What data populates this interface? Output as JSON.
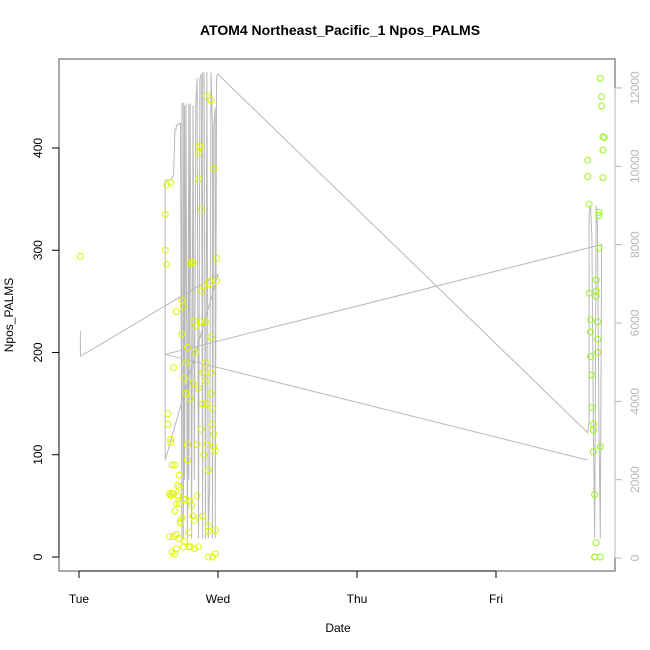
{
  "chart_data": {
    "type": "scatter",
    "title": "ATOM4 Northeast_Pacific_1 Npos_PALMS",
    "xlabel": "Date",
    "ylabel": "Npos_PALMS",
    "xlim_days": [
      0,
      3.72
    ],
    "x_tick_labels": [
      {
        "label": "Tue",
        "day": 0
      },
      {
        "label": "Wed",
        "day": 1
      },
      {
        "label": "Thu",
        "day": 2
      },
      {
        "label": "Fri",
        "day": 3
      }
    ],
    "ylim": [
      0,
      460
    ],
    "y_ticks": [
      0,
      100,
      200,
      300,
      400
    ],
    "y2lim": [
      0,
      12000
    ],
    "y2_ticks": [
      0,
      2000,
      4000,
      6000,
      8000,
      10000,
      12000
    ],
    "grid": false,
    "colors": {
      "early_points": "#ddf700",
      "late_points": "#99f51a",
      "secondary_line": "#b8b8b8",
      "secondary_axis": "#b8b8b8"
    },
    "series": [
      {
        "type": "scatter",
        "axis": "left",
        "x": [
          0.01,
          0.62,
          0.62,
          0.63,
          0.64,
          0.64,
          0.65,
          0.65,
          0.66,
          0.66,
          0.66,
          0.67,
          0.67,
          0.67,
          0.68,
          0.68,
          0.69,
          0.69,
          0.69,
          0.7,
          0.7,
          0.7,
          0.71,
          0.71,
          0.72,
          0.72,
          0.72,
          0.73,
          0.73,
          0.74,
          0.74,
          0.75,
          0.75,
          0.75,
          0.76,
          0.76,
          0.77,
          0.77,
          0.77,
          0.78,
          0.78,
          0.79,
          0.79,
          0.8,
          0.8,
          0.8,
          0.81,
          0.81,
          0.82,
          0.82,
          0.83,
          0.83,
          0.83,
          0.84,
          0.84,
          0.85,
          0.85,
          0.86,
          0.86,
          0.86,
          0.87,
          0.87,
          0.88,
          0.88,
          0.88,
          0.89,
          0.89,
          0.9,
          0.9,
          0.91,
          0.91,
          0.91,
          0.92,
          0.92,
          0.93,
          0.93,
          0.93,
          0.94,
          0.94,
          0.95,
          0.95,
          0.95,
          0.96,
          0.96,
          0.97,
          0.97,
          0.98,
          0.98,
          0.98,
          0.99,
          0.99,
          0.63,
          0.66,
          0.7,
          0.74,
          0.78,
          0.82,
          0.86,
          0.89,
          0.92,
          0.95,
          0.97,
          0.68,
          0.72,
          0.8,
          0.88,
          0.93,
          0.96
        ],
        "y": [
          294,
          335,
          300,
          286,
          140,
          130,
          62,
          20,
          60,
          115,
          112,
          90,
          62,
          5,
          62,
          20,
          90,
          45,
          3,
          8,
          22,
          52,
          60,
          70,
          18,
          52,
          68,
          35,
          33,
          38,
          251,
          245,
          57,
          10,
          15,
          175,
          56,
          190,
          160,
          110,
          95,
          10,
          24,
          55,
          287,
          155,
          50,
          288,
          40,
          288,
          36,
          8,
          231,
          226,
          200,
          110,
          60,
          10,
          395,
          370,
          401,
          402,
          260,
          230,
          125,
          150,
          180,
          100,
          265,
          230,
          190,
          172,
          150,
          110,
          85,
          30,
          25,
          270,
          267,
          215,
          180,
          160,
          145,
          130,
          120,
          108,
          104,
          3,
          26,
          292,
          270,
          364,
          366,
          240,
          218,
          205,
          170,
          165,
          40,
          451,
          447,
          380,
          185,
          80,
          10,
          340,
          0,
          0
        ],
        "color": "#ddf700"
      },
      {
        "type": "scatter",
        "axis": "left",
        "x": [
          3.66,
          3.66,
          3.67,
          3.67,
          3.68,
          3.68,
          3.68,
          3.69,
          3.69,
          3.7,
          3.7,
          3.7,
          3.71,
          3.71,
          3.71,
          3.72,
          3.72,
          3.72,
          3.72,
          3.73,
          3.73,
          3.73,
          3.74,
          3.74,
          3.74,
          3.75,
          3.75,
          3.75,
          3.76,
          3.76,
          3.77,
          3.77,
          3.77,
          3.78
        ],
        "y": [
          388,
          372,
          345,
          258,
          232,
          220,
          196,
          178,
          146,
          130,
          124,
          103,
          61,
          0,
          0,
          14,
          255,
          260,
          271,
          230,
          213,
          200,
          334,
          337,
          302,
          108,
          0,
          468,
          450,
          441,
          411,
          398,
          371,
          410
        ],
        "color": "#99f51a"
      },
      {
        "type": "line",
        "axis": "right",
        "x": [
          0.01,
          0.01,
          1.0,
          0.62,
          0.62,
          0.66,
          0.67,
          0.68,
          0.69,
          0.69,
          0.7,
          0.7,
          0.71,
          0.72,
          0.73,
          0.74,
          0.74,
          0.75,
          0.75,
          0.76,
          0.76,
          0.77,
          0.78,
          0.79,
          0.79,
          0.8,
          0.81,
          0.82,
          0.83,
          0.84,
          0.85,
          0.86,
          0.87,
          0.88,
          0.89,
          0.89,
          0.9,
          0.91,
          0.92,
          0.93,
          0.94,
          0.95,
          0.96,
          0.96,
          0.97,
          0.98,
          0.98,
          0.99,
          1.0,
          3.66,
          3.67,
          3.67,
          3.68,
          3.69,
          3.7,
          3.71,
          3.72,
          3.72,
          3.73,
          3.74,
          3.75,
          3.76,
          0.62,
          3.66
        ],
        "y": [
          5800,
          5150,
          7240,
          2500,
          9650,
          9650,
          9730,
          9750,
          10900,
          10950,
          10950,
          11050,
          11050,
          11100,
          11100,
          500,
          11600,
          11600,
          500,
          11550,
          2000,
          11600,
          500,
          11600,
          2000,
          11600,
          500,
          11550,
          2000,
          11600,
          12250,
          500,
          12250,
          12350,
          500,
          12400,
          12350,
          500,
          12400,
          500,
          2000,
          12400,
          11000,
          500,
          11000,
          11500,
          500,
          12300,
          12350,
          3200,
          3500,
          8800,
          9000,
          8200,
          3500,
          500,
          8600,
          9000,
          8500,
          3500,
          500,
          8000,
          5200,
          2500
        ],
        "color": "#b8b8b8"
      }
    ]
  }
}
